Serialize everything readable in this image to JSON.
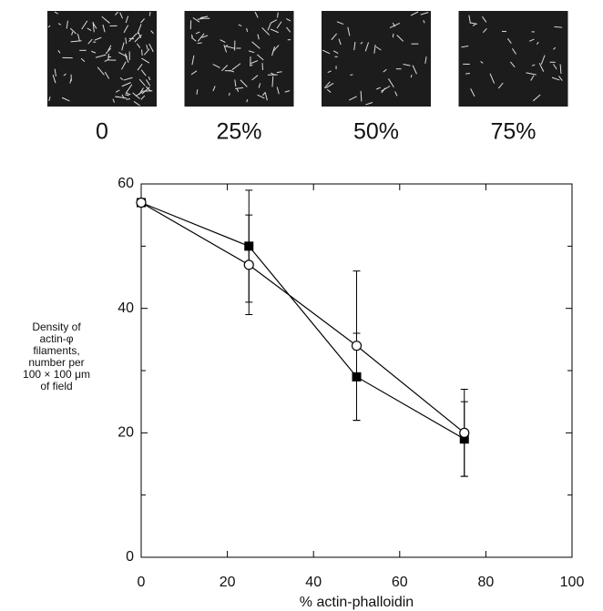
{
  "panels": [
    {
      "label": "0"
    },
    {
      "label": "25%"
    },
    {
      "label": "50%"
    },
    {
      "label": "75%"
    }
  ],
  "chart_data": {
    "type": "line",
    "x_label": "% actin-phalloidin",
    "y_label": [
      "Density of",
      "actin-φ",
      "filaments,",
      "number per",
      "100 × 100 μm",
      "of field"
    ],
    "xlim": [
      0,
      100
    ],
    "xticks": [
      0,
      20,
      40,
      60,
      80,
      100
    ],
    "ylim": [
      0,
      60
    ],
    "yticks": [
      0,
      20,
      40,
      60
    ],
    "yminorticks": [
      10,
      30,
      50
    ],
    "x": [
      0,
      25,
      50,
      75
    ],
    "series": [
      {
        "marker": "square",
        "color": "#000000",
        "values": [
          57,
          50,
          29,
          19
        ],
        "errors": [
          null,
          9,
          7,
          6
        ]
      },
      {
        "marker": "circle",
        "color": "#000000",
        "values": [
          57,
          47,
          34,
          20
        ],
        "errors": [
          null,
          8,
          12,
          7
        ]
      }
    ]
  }
}
